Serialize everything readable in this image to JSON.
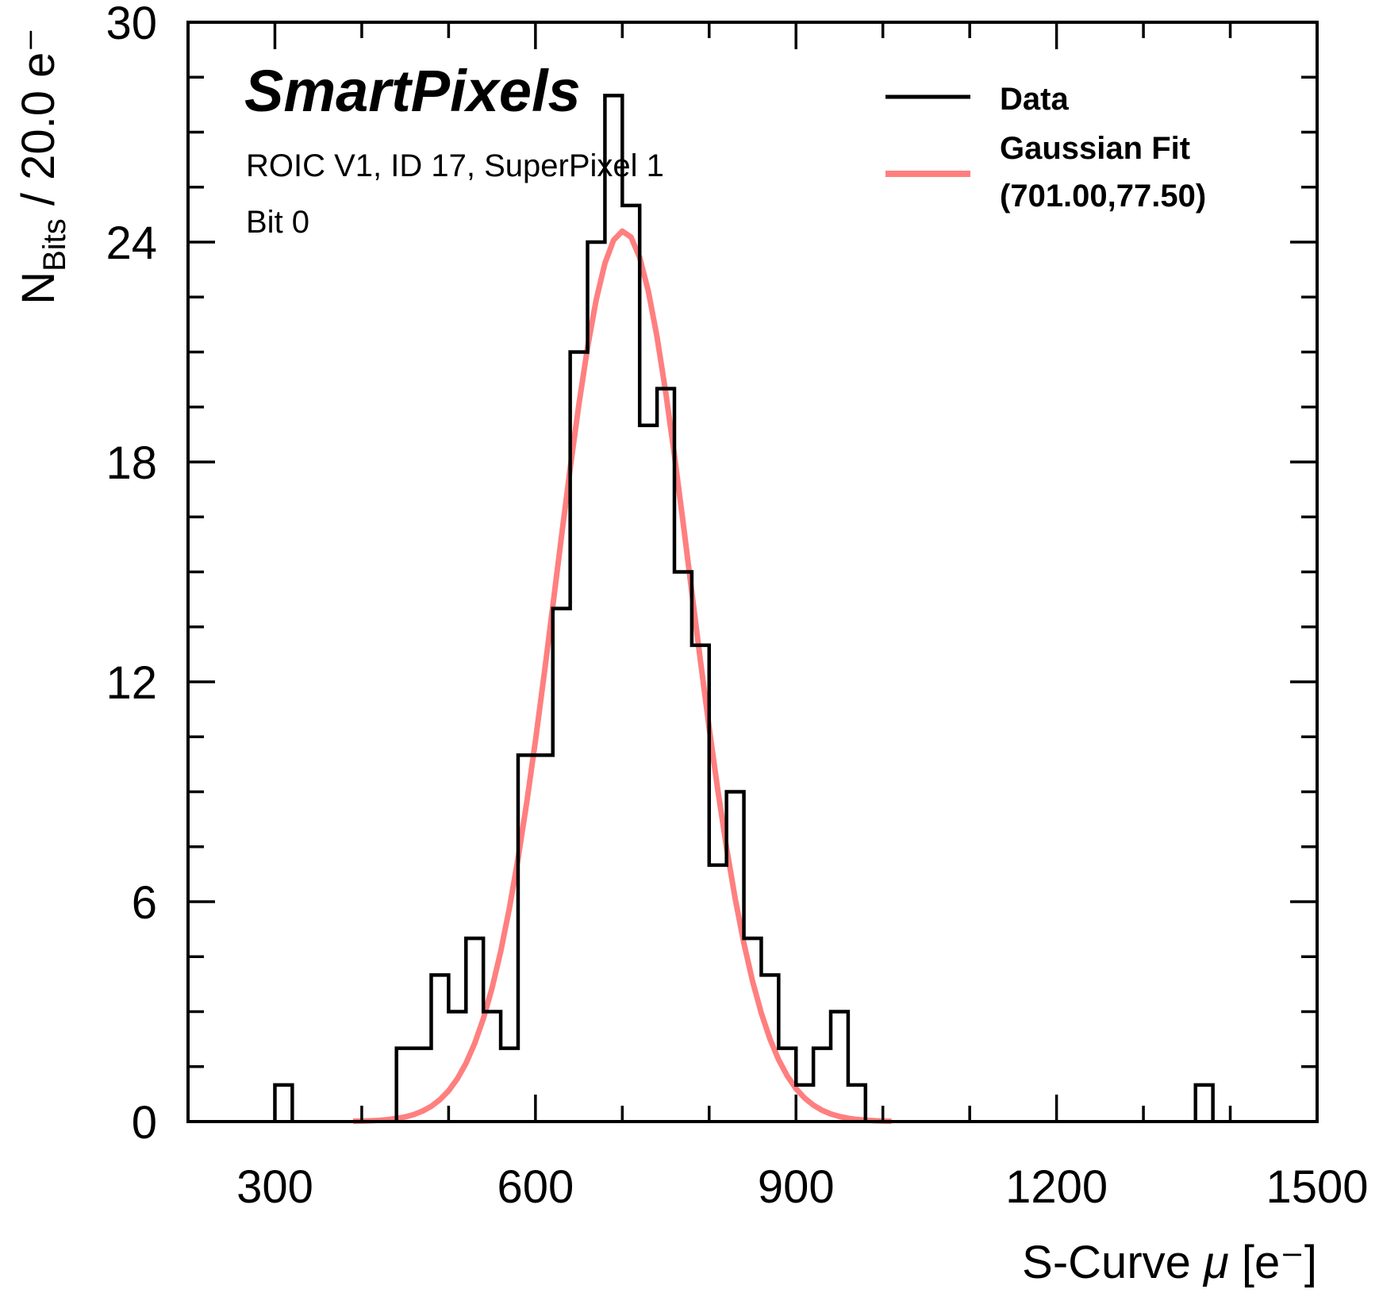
{
  "chart_data": {
    "type": "bar",
    "histogram": true,
    "title": "",
    "brand_label": "SmartPixels",
    "annotations": [
      "ROIC V1, ID 17, SuperPixel 1",
      "Bit 0"
    ],
    "xlabel": "S-Curve μ [e⁻]",
    "xlabel_parts": {
      "pre": "S-Curve ",
      "mu": "μ",
      "post": " [e⁻]"
    },
    "ylabel_parts": {
      "main": "N",
      "sub": "Bits",
      "rest": " / 20.0 e⁻"
    },
    "xlim": [
      200,
      1500
    ],
    "ylim": [
      0,
      30
    ],
    "xticks": [
      300,
      600,
      900,
      1200,
      1500
    ],
    "xtick_labels": [
      "300",
      "600",
      "900",
      "1200",
      "1500"
    ],
    "yticks": [
      0,
      6,
      12,
      18,
      24,
      30
    ],
    "ytick_labels": [
      "0",
      "6",
      "12",
      "18",
      "24",
      "30"
    ],
    "bin_width": 20,
    "bins": [
      {
        "lo": 300,
        "count": 1
      },
      {
        "lo": 440,
        "count": 2
      },
      {
        "lo": 460,
        "count": 2
      },
      {
        "lo": 480,
        "count": 4
      },
      {
        "lo": 500,
        "count": 3
      },
      {
        "lo": 520,
        "count": 5
      },
      {
        "lo": 540,
        "count": 3
      },
      {
        "lo": 560,
        "count": 2
      },
      {
        "lo": 580,
        "count": 10
      },
      {
        "lo": 600,
        "count": 10
      },
      {
        "lo": 620,
        "count": 14
      },
      {
        "lo": 640,
        "count": 21
      },
      {
        "lo": 660,
        "count": 24
      },
      {
        "lo": 680,
        "count": 28
      },
      {
        "lo": 700,
        "count": 25
      },
      {
        "lo": 720,
        "count": 19
      },
      {
        "lo": 740,
        "count": 20
      },
      {
        "lo": 760,
        "count": 15
      },
      {
        "lo": 780,
        "count": 13
      },
      {
        "lo": 800,
        "count": 7
      },
      {
        "lo": 820,
        "count": 9
      },
      {
        "lo": 840,
        "count": 5
      },
      {
        "lo": 860,
        "count": 4
      },
      {
        "lo": 880,
        "count": 2
      },
      {
        "lo": 900,
        "count": 1
      },
      {
        "lo": 920,
        "count": 2
      },
      {
        "lo": 940,
        "count": 3
      },
      {
        "lo": 960,
        "count": 1
      },
      {
        "lo": 1360,
        "count": 1
      }
    ],
    "fit": {
      "type": "gaussian",
      "mean": 701.0,
      "sigma": 77.5,
      "amplitude": 24.3,
      "x_range": [
        390,
        1010
      ]
    },
    "series": [
      {
        "name": "Data",
        "color": "#000000",
        "kind": "step"
      },
      {
        "name": "Gaussian Fit",
        "label_line2": "(701.00,77.50)",
        "color": "#ff7f7f",
        "kind": "line"
      }
    ],
    "legend_position": "top-right",
    "grid": false
  }
}
